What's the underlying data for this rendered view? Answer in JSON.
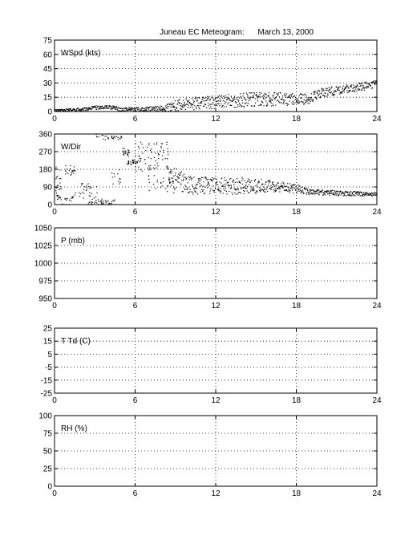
{
  "title": "Juneau EC Meteogram:      March 13, 2000",
  "chart_data": [
    {
      "type": "scatter",
      "label": "WSpd (kts)",
      "xlim": [
        0,
        24
      ],
      "ylim": [
        0,
        75
      ],
      "xticks": [
        "0",
        "6",
        "12",
        "18",
        "24"
      ],
      "yticks": [
        "0",
        "15",
        "30",
        "45",
        "60",
        "75"
      ],
      "grid": true,
      "trend": [
        [
          0,
          1
        ],
        [
          2,
          2
        ],
        [
          3,
          4
        ],
        [
          4,
          5
        ],
        [
          5,
          2
        ],
        [
          6,
          2
        ],
        [
          8,
          3
        ],
        [
          9,
          6
        ],
        [
          10,
          8
        ],
        [
          12,
          10
        ],
        [
          14,
          12
        ],
        [
          16,
          13
        ],
        [
          18,
          13
        ],
        [
          19,
          14
        ],
        [
          20,
          20
        ],
        [
          22,
          24
        ],
        [
          24,
          29
        ]
      ],
      "spread": [
        [
          0,
          1
        ],
        [
          3,
          2
        ],
        [
          5,
          2
        ],
        [
          8,
          3
        ],
        [
          9,
          6
        ],
        [
          12,
          7
        ],
        [
          15,
          8
        ],
        [
          18,
          6
        ],
        [
          20,
          5
        ],
        [
          24,
          4
        ]
      ]
    },
    {
      "type": "scatter",
      "label": "W/Dir",
      "xlim": [
        0,
        24
      ],
      "ylim": [
        0,
        360
      ],
      "xticks": [
        "0",
        "6",
        "12",
        "18",
        "24"
      ],
      "yticks": [
        "0",
        "90",
        "180",
        "270",
        "360"
      ],
      "grid": true,
      "clusters": [
        {
          "x": [
            0,
            0.5
          ],
          "y": [
            20,
            200
          ],
          "n": 30
        },
        {
          "x": [
            0.5,
            1.5
          ],
          "y": [
            0,
            40
          ],
          "n": 15
        },
        {
          "x": [
            0.8,
            1.6
          ],
          "y": [
            150,
            200
          ],
          "n": 20
        },
        {
          "x": [
            1.5,
            3.2
          ],
          "y": [
            30,
            110
          ],
          "n": 30
        },
        {
          "x": [
            2.5,
            4.5
          ],
          "y": [
            0,
            30
          ],
          "n": 40
        },
        {
          "x": [
            3,
            5
          ],
          "y": [
            330,
            360
          ],
          "n": 30
        },
        {
          "x": [
            4.2,
            5
          ],
          "y": [
            100,
            180
          ],
          "n": 12
        },
        {
          "x": [
            5,
            5.6
          ],
          "y": [
            240,
            290
          ],
          "n": 20
        },
        {
          "x": [
            5.4,
            6.2
          ],
          "y": [
            200,
            230
          ],
          "n": 25
        },
        {
          "x": [
            6,
            8.5
          ],
          "y": [
            170,
            320
          ],
          "n": 80
        },
        {
          "x": [
            7,
            9
          ],
          "y": [
            60,
            150
          ],
          "n": 30
        }
      ],
      "trend": [
        [
          8.5,
          150
        ],
        [
          10,
          100
        ],
        [
          12,
          95
        ],
        [
          14,
          95
        ],
        [
          16,
          95
        ],
        [
          18,
          80
        ],
        [
          19,
          65
        ],
        [
          21,
          58
        ],
        [
          24,
          52
        ]
      ],
      "spread": [
        [
          8.5,
          60
        ],
        [
          10,
          50
        ],
        [
          12,
          40
        ],
        [
          14,
          45
        ],
        [
          16,
          30
        ],
        [
          18,
          25
        ],
        [
          19,
          15
        ],
        [
          24,
          10
        ]
      ]
    },
    {
      "type": "scatter",
      "label": "P (mb)",
      "xlim": [
        0,
        24
      ],
      "ylim": [
        950,
        1050
      ],
      "xticks": [
        "0",
        "6",
        "12",
        "18",
        "24"
      ],
      "yticks": [
        "950",
        "975",
        "1000",
        "1025",
        "1050"
      ],
      "grid": true
    },
    {
      "type": "scatter",
      "label": "T Td (C)",
      "xlim": [
        0,
        24
      ],
      "ylim": [
        -25,
        25
      ],
      "xticks": [
        "0",
        "6",
        "12",
        "18",
        "24"
      ],
      "yticks": [
        "-25",
        "-15",
        "-5",
        "5",
        "15",
        "25"
      ],
      "grid": true
    },
    {
      "type": "scatter",
      "label": "RH (%)",
      "xlim": [
        0,
        24
      ],
      "ylim": [
        0,
        100
      ],
      "xticks": [
        "0",
        "6",
        "12",
        "18",
        "24"
      ],
      "yticks": [
        "0",
        "25",
        "50",
        "75",
        "100"
      ],
      "grid": true
    }
  ]
}
